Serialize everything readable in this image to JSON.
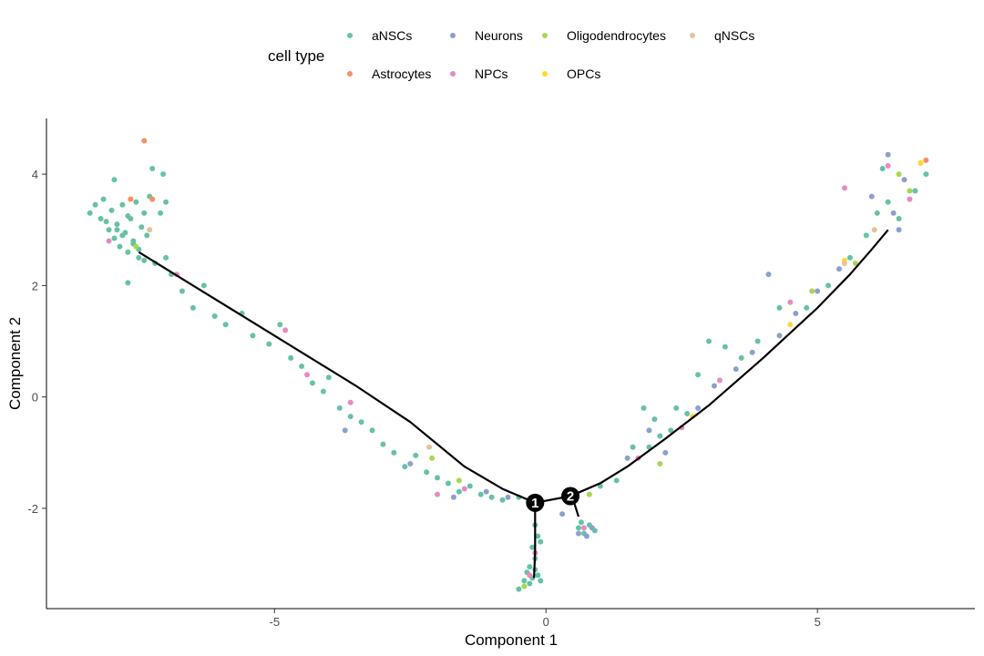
{
  "chart_data": {
    "type": "scatter",
    "xlabel": "Component 1",
    "ylabel": "Component 2",
    "xlim": [
      -9.2,
      7.9
    ],
    "ylim": [
      -3.8,
      5.0
    ],
    "x_ticks": [
      -5,
      0,
      5
    ],
    "x_tick_labels": [
      "-5",
      "0",
      "5"
    ],
    "y_ticks": [
      -2,
      0,
      2,
      4
    ],
    "y_tick_labels": [
      "-2",
      "0",
      "2",
      "4"
    ],
    "grid": false,
    "legend": {
      "title": "cell type",
      "position": "top",
      "entries": [
        {
          "label": "aNSCs",
          "color": "#66c2a5"
        },
        {
          "label": "Astrocytes",
          "color": "#fc8d62"
        },
        {
          "label": "Neurons",
          "color": "#8da0cb"
        },
        {
          "label": "NPCs",
          "color": "#e78ac3"
        },
        {
          "label": "Oligodendrocytes",
          "color": "#a6d854"
        },
        {
          "label": "OPCs",
          "color": "#ffd92f"
        },
        {
          "label": "qNSCs",
          "color": "#e5c494"
        }
      ]
    },
    "trajectory": [
      [
        [
          -7.5,
          2.6
        ],
        [
          -6.5,
          2.0
        ],
        [
          -5.5,
          1.4
        ],
        [
          -4.5,
          0.8
        ],
        [
          -3.5,
          0.2
        ],
        [
          -2.5,
          -0.45
        ],
        [
          -1.5,
          -1.25
        ],
        [
          -0.8,
          -1.65
        ],
        [
          -0.2,
          -1.9
        ]
      ],
      [
        [
          -0.2,
          -1.9
        ],
        [
          -0.2,
          -2.4
        ],
        [
          -0.2,
          -2.8
        ],
        [
          -0.22,
          -3.25
        ]
      ],
      [
        [
          -0.2,
          -1.9
        ],
        [
          0.45,
          -1.78
        ]
      ],
      [
        [
          0.45,
          -1.78
        ],
        [
          0.52,
          -1.9
        ],
        [
          0.6,
          -2.15
        ]
      ],
      [
        [
          0.45,
          -1.78
        ],
        [
          1.0,
          -1.55
        ],
        [
          1.5,
          -1.25
        ],
        [
          2.2,
          -0.75
        ],
        [
          3.0,
          -0.15
        ],
        [
          4.0,
          0.7
        ],
        [
          5.0,
          1.6
        ],
        [
          5.6,
          2.2
        ],
        [
          6.0,
          2.65
        ],
        [
          6.3,
          3.0
        ]
      ]
    ],
    "branch_points": [
      {
        "label": "1",
        "x": -0.2,
        "y": -1.9
      },
      {
        "label": "2",
        "x": 0.45,
        "y": -1.78
      }
    ],
    "points": [
      {
        "x": -8.4,
        "y": 3.3,
        "type": "aNSCs"
      },
      {
        "x": -8.3,
        "y": 3.45,
        "type": "aNSCs"
      },
      {
        "x": -8.2,
        "y": 3.2,
        "type": "aNSCs"
      },
      {
        "x": -8.15,
        "y": 3.55,
        "type": "aNSCs"
      },
      {
        "x": -8.05,
        "y": 3.0,
        "type": "aNSCs"
      },
      {
        "x": -8.0,
        "y": 3.35,
        "type": "aNSCs"
      },
      {
        "x": -7.95,
        "y": 2.85,
        "type": "aNSCs"
      },
      {
        "x": -7.9,
        "y": 3.1,
        "type": "aNSCs"
      },
      {
        "x": -7.85,
        "y": 2.7,
        "type": "aNSCs"
      },
      {
        "x": -7.8,
        "y": 3.45,
        "type": "aNSCs"
      },
      {
        "x": -7.75,
        "y": 2.95,
        "type": "aNSCs"
      },
      {
        "x": -7.7,
        "y": 2.6,
        "type": "aNSCs"
      },
      {
        "x": -7.65,
        "y": 3.2,
        "type": "aNSCs"
      },
      {
        "x": -7.6,
        "y": 2.8,
        "type": "aNSCs"
      },
      {
        "x": -7.55,
        "y": 3.5,
        "type": "aNSCs"
      },
      {
        "x": -7.5,
        "y": 2.5,
        "type": "aNSCs"
      },
      {
        "x": -7.45,
        "y": 3.05,
        "type": "aNSCs"
      },
      {
        "x": -7.4,
        "y": 3.3,
        "type": "aNSCs"
      },
      {
        "x": -7.35,
        "y": 2.9,
        "type": "aNSCs"
      },
      {
        "x": -7.3,
        "y": 3.6,
        "type": "aNSCs"
      },
      {
        "x": -7.95,
        "y": 3.9,
        "type": "aNSCs"
      },
      {
        "x": -7.25,
        "y": 4.1,
        "type": "aNSCs"
      },
      {
        "x": -7.05,
        "y": 4.0,
        "type": "aNSCs"
      },
      {
        "x": -7.0,
        "y": 3.5,
        "type": "aNSCs"
      },
      {
        "x": -7.1,
        "y": 3.3,
        "type": "aNSCs"
      },
      {
        "x": -7.7,
        "y": 2.05,
        "type": "aNSCs"
      },
      {
        "x": -7.0,
        "y": 2.5,
        "type": "aNSCs"
      },
      {
        "x": -7.4,
        "y": 2.45,
        "type": "aNSCs"
      },
      {
        "x": -8.1,
        "y": 3.15,
        "type": "aNSCs"
      },
      {
        "x": -7.9,
        "y": 3.0,
        "type": "aNSCs"
      },
      {
        "x": -7.6,
        "y": 2.75,
        "type": "aNSCs"
      },
      {
        "x": -7.5,
        "y": 2.65,
        "type": "aNSCs"
      },
      {
        "x": -7.8,
        "y": 2.9,
        "type": "aNSCs"
      },
      {
        "x": -7.7,
        "y": 3.25,
        "type": "aNSCs"
      },
      {
        "x": -7.65,
        "y": 3.55,
        "type": "Astrocytes"
      },
      {
        "x": -7.4,
        "y": 4.6,
        "type": "Astrocytes"
      },
      {
        "x": -7.25,
        "y": 3.55,
        "type": "Astrocytes"
      },
      {
        "x": -8.05,
        "y": 2.8,
        "type": "NPCs"
      },
      {
        "x": -6.8,
        "y": 2.2,
        "type": "NPCs"
      },
      {
        "x": -7.55,
        "y": 2.7,
        "type": "Oligodendrocytes"
      },
      {
        "x": -7.3,
        "y": 3.0,
        "type": "qNSCs"
      },
      {
        "x": -7.2,
        "y": 2.4,
        "type": "aNSCs"
      },
      {
        "x": -6.9,
        "y": 2.2,
        "type": "aNSCs"
      },
      {
        "x": -6.7,
        "y": 1.9,
        "type": "aNSCs"
      },
      {
        "x": -6.5,
        "y": 1.6,
        "type": "aNSCs"
      },
      {
        "x": -6.3,
        "y": 2.0,
        "type": "aNSCs"
      },
      {
        "x": -6.1,
        "y": 1.45,
        "type": "aNSCs"
      },
      {
        "x": -5.9,
        "y": 1.3,
        "type": "aNSCs"
      },
      {
        "x": -5.6,
        "y": 1.5,
        "type": "aNSCs"
      },
      {
        "x": -5.4,
        "y": 1.1,
        "type": "aNSCs"
      },
      {
        "x": -5.1,
        "y": 0.95,
        "type": "aNSCs"
      },
      {
        "x": -4.9,
        "y": 1.3,
        "type": "aNSCs"
      },
      {
        "x": -4.7,
        "y": 0.7,
        "type": "aNSCs"
      },
      {
        "x": -4.5,
        "y": 0.55,
        "type": "aNSCs"
      },
      {
        "x": -4.3,
        "y": 0.25,
        "type": "aNSCs"
      },
      {
        "x": -4.1,
        "y": 0.1,
        "type": "aNSCs"
      },
      {
        "x": -4.0,
        "y": 0.35,
        "type": "aNSCs"
      },
      {
        "x": -3.8,
        "y": -0.2,
        "type": "aNSCs"
      },
      {
        "x": -3.6,
        "y": -0.35,
        "type": "aNSCs"
      },
      {
        "x": -3.4,
        "y": -0.45,
        "type": "aNSCs"
      },
      {
        "x": -3.2,
        "y": -0.6,
        "type": "aNSCs"
      },
      {
        "x": -3.0,
        "y": -0.85,
        "type": "aNSCs"
      },
      {
        "x": -2.8,
        "y": -1.0,
        "type": "aNSCs"
      },
      {
        "x": -2.6,
        "y": -1.25,
        "type": "aNSCs"
      },
      {
        "x": -2.4,
        "y": -1.05,
        "type": "aNSCs"
      },
      {
        "x": -2.2,
        "y": -1.35,
        "type": "aNSCs"
      },
      {
        "x": -2.0,
        "y": -1.45,
        "type": "aNSCs"
      },
      {
        "x": -1.8,
        "y": -1.55,
        "type": "aNSCs"
      },
      {
        "x": -1.6,
        "y": -1.7,
        "type": "aNSCs"
      },
      {
        "x": -1.4,
        "y": -1.6,
        "type": "aNSCs"
      },
      {
        "x": -1.2,
        "y": -1.75,
        "type": "aNSCs"
      },
      {
        "x": -1.0,
        "y": -1.8,
        "type": "aNSCs"
      },
      {
        "x": -0.8,
        "y": -1.85,
        "type": "aNSCs"
      },
      {
        "x": -0.5,
        "y": -1.8,
        "type": "aNSCs"
      },
      {
        "x": -3.7,
        "y": -0.6,
        "type": "Neurons"
      },
      {
        "x": -2.5,
        "y": -1.2,
        "type": "Neurons"
      },
      {
        "x": -1.7,
        "y": -1.8,
        "type": "Neurons"
      },
      {
        "x": -1.1,
        "y": -1.7,
        "type": "Neurons"
      },
      {
        "x": -0.7,
        "y": -1.8,
        "type": "Neurons"
      },
      {
        "x": -4.8,
        "y": 1.2,
        "type": "NPCs"
      },
      {
        "x": -3.6,
        "y": -0.1,
        "type": "NPCs"
      },
      {
        "x": -2.0,
        "y": -1.75,
        "type": "NPCs"
      },
      {
        "x": -1.5,
        "y": -1.65,
        "type": "NPCs"
      },
      {
        "x": -4.4,
        "y": 0.4,
        "type": "NPCs"
      },
      {
        "x": -2.1,
        "y": -1.1,
        "type": "Oligodendrocytes"
      },
      {
        "x": -1.6,
        "y": -1.5,
        "type": "Oligodendrocytes"
      },
      {
        "x": -2.15,
        "y": -0.9,
        "type": "qNSCs"
      },
      {
        "x": -0.2,
        "y": -2.3,
        "type": "aNSCs"
      },
      {
        "x": -0.15,
        "y": -2.5,
        "type": "aNSCs"
      },
      {
        "x": -0.25,
        "y": -2.7,
        "type": "aNSCs"
      },
      {
        "x": -0.2,
        "y": -2.9,
        "type": "aNSCs"
      },
      {
        "x": -0.3,
        "y": -3.05,
        "type": "aNSCs"
      },
      {
        "x": -0.35,
        "y": -3.15,
        "type": "aNSCs"
      },
      {
        "x": -0.25,
        "y": -3.25,
        "type": "aNSCs"
      },
      {
        "x": -0.15,
        "y": -3.2,
        "type": "aNSCs"
      },
      {
        "x": -0.4,
        "y": -3.3,
        "type": "aNSCs"
      },
      {
        "x": -0.1,
        "y": -3.3,
        "type": "aNSCs"
      },
      {
        "x": -0.3,
        "y": -3.35,
        "type": "aNSCs"
      },
      {
        "x": -0.2,
        "y": -3.1,
        "type": "aNSCs"
      },
      {
        "x": -0.5,
        "y": -3.45,
        "type": "aNSCs"
      },
      {
        "x": -0.1,
        "y": -2.6,
        "type": "aNSCs"
      },
      {
        "x": -0.2,
        "y": -2.8,
        "type": "NPCs"
      },
      {
        "x": -0.3,
        "y": -3.2,
        "type": "NPCs"
      },
      {
        "x": -0.4,
        "y": -3.4,
        "type": "Oligodendrocytes"
      },
      {
        "x": 0.6,
        "y": -2.35,
        "type": "aNSCs"
      },
      {
        "x": 0.7,
        "y": -2.45,
        "type": "aNSCs"
      },
      {
        "x": 0.8,
        "y": -2.3,
        "type": "aNSCs"
      },
      {
        "x": 0.9,
        "y": -2.4,
        "type": "aNSCs"
      },
      {
        "x": 0.65,
        "y": -2.25,
        "type": "aNSCs"
      },
      {
        "x": 0.6,
        "y": -2.45,
        "type": "Neurons"
      },
      {
        "x": 0.75,
        "y": -2.5,
        "type": "Neurons"
      },
      {
        "x": 0.85,
        "y": -2.35,
        "type": "Neurons"
      },
      {
        "x": 0.7,
        "y": -2.35,
        "type": "NPCs"
      },
      {
        "x": 1.0,
        "y": -1.6,
        "type": "aNSCs"
      },
      {
        "x": 1.3,
        "y": -1.5,
        "type": "aNSCs"
      },
      {
        "x": 1.6,
        "y": -0.9,
        "type": "aNSCs"
      },
      {
        "x": 1.8,
        "y": -0.2,
        "type": "aNSCs"
      },
      {
        "x": 2.0,
        "y": -0.4,
        "type": "aNSCs"
      },
      {
        "x": 2.1,
        "y": -0.7,
        "type": "aNSCs"
      },
      {
        "x": 2.3,
        "y": -0.6,
        "type": "aNSCs"
      },
      {
        "x": 2.6,
        "y": -0.3,
        "type": "aNSCs"
      },
      {
        "x": 2.8,
        "y": 0.4,
        "type": "aNSCs"
      },
      {
        "x": 3.0,
        "y": 1.0,
        "type": "aNSCs"
      },
      {
        "x": 3.3,
        "y": 0.9,
        "type": "aNSCs"
      },
      {
        "x": 3.6,
        "y": 0.7,
        "type": "aNSCs"
      },
      {
        "x": 3.9,
        "y": 1.0,
        "type": "aNSCs"
      },
      {
        "x": 4.3,
        "y": 1.6,
        "type": "aNSCs"
      },
      {
        "x": 4.8,
        "y": 1.6,
        "type": "aNSCs"
      },
      {
        "x": 5.2,
        "y": 2.0,
        "type": "aNSCs"
      },
      {
        "x": 5.6,
        "y": 2.5,
        "type": "aNSCs"
      },
      {
        "x": 5.9,
        "y": 2.9,
        "type": "aNSCs"
      },
      {
        "x": 6.1,
        "y": 3.3,
        "type": "aNSCs"
      },
      {
        "x": 6.3,
        "y": 3.5,
        "type": "aNSCs"
      },
      {
        "x": 6.5,
        "y": 3.2,
        "type": "aNSCs"
      },
      {
        "x": 6.8,
        "y": 3.7,
        "type": "aNSCs"
      },
      {
        "x": 7.0,
        "y": 4.0,
        "type": "aNSCs"
      },
      {
        "x": 6.2,
        "y": 4.1,
        "type": "aNSCs"
      },
      {
        "x": 1.9,
        "y": -0.9,
        "type": "aNSCs"
      },
      {
        "x": 2.4,
        "y": -0.2,
        "type": "aNSCs"
      },
      {
        "x": 1.5,
        "y": -1.1,
        "type": "Neurons"
      },
      {
        "x": 1.9,
        "y": -0.6,
        "type": "Neurons"
      },
      {
        "x": 2.2,
        "y": -1.0,
        "type": "Neurons"
      },
      {
        "x": 2.8,
        "y": -0.2,
        "type": "Neurons"
      },
      {
        "x": 3.1,
        "y": 0.2,
        "type": "Neurons"
      },
      {
        "x": 3.5,
        "y": 0.5,
        "type": "Neurons"
      },
      {
        "x": 3.8,
        "y": 0.8,
        "type": "Neurons"
      },
      {
        "x": 4.1,
        "y": 2.2,
        "type": "Neurons"
      },
      {
        "x": 4.3,
        "y": 1.1,
        "type": "Neurons"
      },
      {
        "x": 4.6,
        "y": 1.5,
        "type": "Neurons"
      },
      {
        "x": 5.0,
        "y": 1.9,
        "type": "Neurons"
      },
      {
        "x": 5.4,
        "y": 2.3,
        "type": "Neurons"
      },
      {
        "x": 6.0,
        "y": 3.6,
        "type": "Neurons"
      },
      {
        "x": 6.4,
        "y": 3.3,
        "type": "Neurons"
      },
      {
        "x": 6.6,
        "y": 3.9,
        "type": "Neurons"
      },
      {
        "x": 6.9,
        "y": 4.2,
        "type": "Neurons"
      },
      {
        "x": 6.3,
        "y": 4.35,
        "type": "Neurons"
      },
      {
        "x": 6.5,
        "y": 3.0,
        "type": "Neurons"
      },
      {
        "x": 0.3,
        "y": -2.1,
        "type": "Neurons"
      },
      {
        "x": 2.5,
        "y": -0.55,
        "type": "NPCs"
      },
      {
        "x": 3.2,
        "y": 0.3,
        "type": "NPCs"
      },
      {
        "x": 4.5,
        "y": 1.7,
        "type": "NPCs"
      },
      {
        "x": 5.5,
        "y": 3.75,
        "type": "NPCs"
      },
      {
        "x": 6.3,
        "y": 4.15,
        "type": "NPCs"
      },
      {
        "x": 6.7,
        "y": 3.55,
        "type": "NPCs"
      },
      {
        "x": 1.7,
        "y": -1.1,
        "type": "NPCs"
      },
      {
        "x": 2.1,
        "y": -1.2,
        "type": "Oligodendrocytes"
      },
      {
        "x": 4.9,
        "y": 1.9,
        "type": "Oligodendrocytes"
      },
      {
        "x": 5.7,
        "y": 2.4,
        "type": "Oligodendrocytes"
      },
      {
        "x": 6.5,
        "y": 4.0,
        "type": "Oligodendrocytes"
      },
      {
        "x": 6.7,
        "y": 3.7,
        "type": "Oligodendrocytes"
      },
      {
        "x": 0.8,
        "y": -1.75,
        "type": "Oligodendrocytes"
      },
      {
        "x": 2.7,
        "y": -0.35,
        "type": "OPCs"
      },
      {
        "x": 4.5,
        "y": 1.3,
        "type": "OPCs"
      },
      {
        "x": 5.5,
        "y": 2.45,
        "type": "OPCs"
      },
      {
        "x": 6.9,
        "y": 4.2,
        "type": "OPCs"
      },
      {
        "x": 5.5,
        "y": 2.4,
        "type": "qNSCs"
      },
      {
        "x": 6.05,
        "y": 3.0,
        "type": "qNSCs"
      },
      {
        "x": 7.0,
        "y": 4.25,
        "type": "Astrocytes"
      }
    ]
  }
}
